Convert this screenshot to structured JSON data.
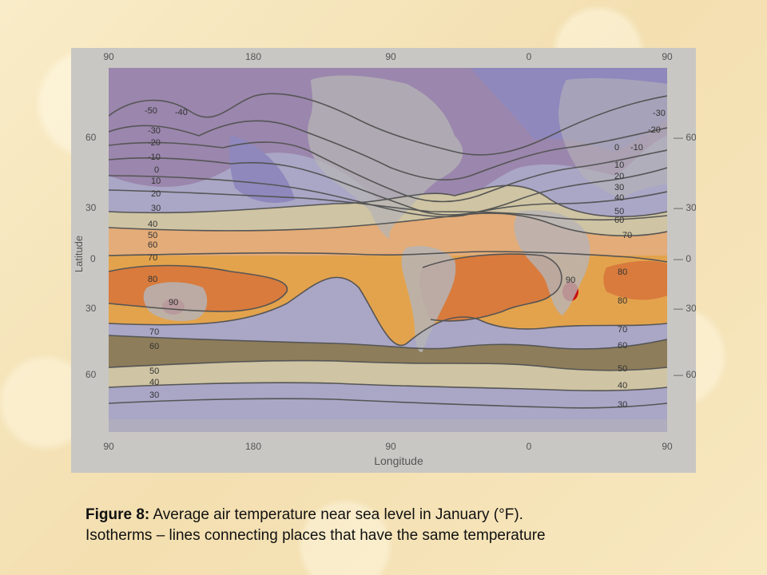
{
  "map": {
    "ylabel": "Latitude",
    "xlabel": "Longitude",
    "top_ticks": [
      "90",
      "180",
      "90",
      "0",
      "90"
    ],
    "bottom_ticks": [
      "90",
      "180",
      "90",
      "0",
      "90"
    ],
    "left_ticks": [
      "60",
      "30",
      "0",
      "30",
      "60"
    ],
    "right_ticks": [
      "60",
      "30",
      "0",
      "30",
      "60"
    ],
    "isotherm_labels": {
      "pacific_north": [
        "-50",
        "-40",
        "-30",
        "-20",
        "-10",
        "0",
        "10",
        "20",
        "30",
        "40",
        "50",
        "60",
        "70",
        "80"
      ],
      "asia_east": [
        "-30",
        "-20",
        "0",
        "-10",
        "10",
        "20",
        "30",
        "40",
        "50",
        "60",
        "70"
      ],
      "africa_south": [
        "80",
        "80",
        "70",
        "60",
        "50",
        "40",
        "30"
      ],
      "pacific_south": [
        "70",
        "60",
        "50",
        "40",
        "30"
      ],
      "hot_spots": [
        "90",
        "90"
      ]
    },
    "colors": {
      "frame": "#c9c7c3",
      "very_cold": "#9b86ad",
      "cold": "#8f88bd",
      "cool": "#aaa6c6",
      "mild": "#cfc4a3",
      "warm_band": "#8e7d5a",
      "warm": "#e3ac78",
      "hot": "#e3a34c",
      "hotter": "#d87b3d",
      "hottest": "#c81010",
      "land": "#b6b4b6"
    }
  },
  "caption": {
    "figure_label": "Figure 8:",
    "line1": " Average air temperature near sea level in January (°F).",
    "line2": "Isotherms – lines connecting places that have the same temperature"
  }
}
